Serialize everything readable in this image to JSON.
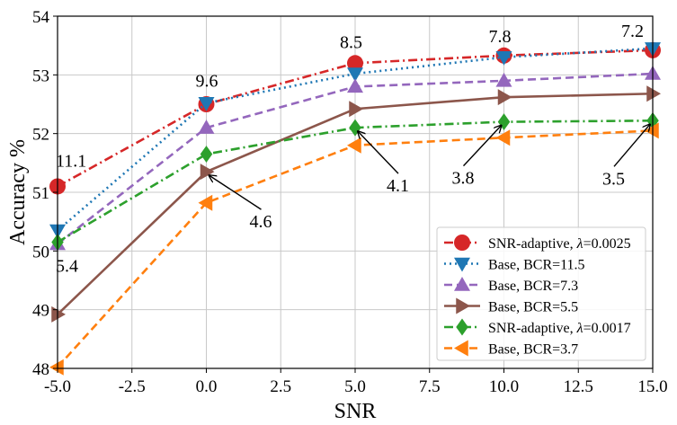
{
  "chart_data": {
    "type": "line",
    "xlabel": "SNR",
    "ylabel": "Accuracy %",
    "xlim": [
      -5,
      15
    ],
    "ylim": [
      48,
      54
    ],
    "xticks": [
      "-5.0",
      "-2.5",
      "0.0",
      "2.5",
      "5.0",
      "7.5",
      "10.0",
      "12.5",
      "15.0"
    ],
    "yticks": [
      "48",
      "49",
      "50",
      "51",
      "52",
      "53",
      "54"
    ],
    "grid": true,
    "legend_position": "lower-right",
    "x": [
      -5,
      0,
      5,
      10,
      15
    ],
    "series": [
      {
        "name": "SNR-adaptive, λ=0.0025",
        "name_prefix": "SNR-adaptive, ",
        "name_italic": "λ",
        "name_suffix": "=0.0025",
        "color": "#d62728",
        "dash": "dashdot",
        "marker": "circle",
        "values": [
          51.1,
          52.5,
          53.2,
          53.33,
          53.42
        ]
      },
      {
        "name": "Base, BCR=11.5",
        "name_prefix": "Base, BCR=11.5",
        "name_italic": "",
        "name_suffix": "",
        "color": "#1f77b4",
        "dash": "dotted",
        "marker": "triangle-down",
        "values": [
          50.35,
          52.52,
          53.02,
          53.3,
          53.45
        ]
      },
      {
        "name": "Base, BCR=7.3",
        "name_prefix": "Base, BCR=7.3",
        "name_italic": "",
        "name_suffix": "",
        "color": "#9467bd",
        "dash": "dashed",
        "marker": "triangle-up",
        "values": [
          50.12,
          52.1,
          52.8,
          52.9,
          53.02
        ]
      },
      {
        "name": "Base, BCR=5.5",
        "name_prefix": "Base, BCR=5.5",
        "name_italic": "",
        "name_suffix": "",
        "color": "#8c564b",
        "dash": "solid",
        "marker": "triangle-right",
        "values": [
          48.92,
          51.35,
          52.42,
          52.62,
          52.68
        ]
      },
      {
        "name": "SNR-adaptive, λ=0.0017",
        "name_prefix": "SNR-adaptive, ",
        "name_italic": "λ",
        "name_suffix": "=0.0017",
        "color": "#2ca02c",
        "dash": "dashdot",
        "marker": "diamond",
        "values": [
          50.15,
          51.65,
          52.1,
          52.2,
          52.22
        ]
      },
      {
        "name": "Base, BCR=3.7",
        "name_prefix": "Base, BCR=3.7",
        "name_italic": "",
        "name_suffix": "",
        "color": "#ff7f0e",
        "dash": "dashed",
        "marker": "triangle-left",
        "values": [
          48.02,
          50.82,
          51.8,
          51.93,
          52.05
        ]
      }
    ],
    "annotations": [
      {
        "text": "11.1",
        "x": -5,
        "y": 51.1
      },
      {
        "text": "5.4",
        "x": -5,
        "y": 50.12
      },
      {
        "text": "9.6",
        "x": 0,
        "y": 52.52
      },
      {
        "text": "8.5",
        "x": 5,
        "y": 53.2
      },
      {
        "text": "7.8",
        "x": 10,
        "y": 53.33
      },
      {
        "text": "7.2",
        "x": 15,
        "y": 53.45
      },
      {
        "text": "4.6",
        "x": 0,
        "y": 51.35,
        "arrow": true
      },
      {
        "text": "4.1",
        "x": 5,
        "y": 52.1,
        "arrow": true
      },
      {
        "text": "3.8",
        "x": 10,
        "y": 52.2,
        "arrow": true
      },
      {
        "text": "3.5",
        "x": 15,
        "y": 52.22,
        "arrow": true
      }
    ]
  }
}
